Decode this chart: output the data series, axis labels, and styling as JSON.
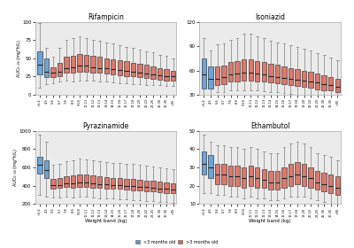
{
  "subplots": [
    {
      "title": "Rifampicin",
      "ylim": [
        0,
        100
      ],
      "yticks": [
        0,
        25,
        50,
        75,
        100
      ]
    },
    {
      "title": "Isoniazid",
      "ylim": [
        30,
        120
      ],
      "yticks": [
        30,
        60,
        90,
        120
      ]
    },
    {
      "title": "Pyrazinamide",
      "ylim": [
        200,
        1000
      ],
      "yticks": [
        200,
        400,
        600,
        800,
        1000
      ]
    },
    {
      "title": "Ethambutol",
      "ylim": [
        10,
        50
      ],
      "yticks": [
        10,
        20,
        30,
        40,
        50
      ]
    }
  ],
  "color_young": "#5b9bd5",
  "color_old": "#d9695a",
  "color_bg": "#ebebeb",
  "ylabel": "AUC₀₋₂₄ (mg*h/L)",
  "xlabel": "Weight band (kg)",
  "legend_young": "<3 months old",
  "legend_old": ">3 months old",
  "xtick_labels": [
    "<3-4",
    "4-5",
    "5-6",
    "6-7",
    "7-8",
    "8-9",
    "9-10",
    "10-11",
    "11-12",
    "12-13",
    "13-14",
    "14-15",
    "15-16",
    "16-17",
    "17-18",
    "18-20",
    "20-22",
    "22-25",
    "25-30",
    "30-35",
    ">35"
  ],
  "drugs": {
    "rfp": {
      "young": [
        {
          "wlo": 10,
          "q1": 28,
          "med": 42,
          "q3": 60,
          "whi": 98
        },
        {
          "wlo": 15,
          "q1": 24,
          "med": 32,
          "q3": 50,
          "whi": 65
        }
      ],
      "old": [
        {
          "wlo": 16,
          "q1": 24,
          "med": 30,
          "q3": 38,
          "whi": 52
        },
        {
          "wlo": 18,
          "q1": 26,
          "med": 32,
          "q3": 44,
          "whi": 65
        },
        {
          "wlo": 20,
          "q1": 30,
          "med": 37,
          "q3": 52,
          "whi": 75
        },
        {
          "wlo": 18,
          "q1": 30,
          "med": 38,
          "q3": 54,
          "whi": 78
        },
        {
          "wlo": 20,
          "q1": 32,
          "med": 40,
          "q3": 56,
          "whi": 80
        },
        {
          "wlo": 20,
          "q1": 32,
          "med": 40,
          "q3": 55,
          "whi": 78
        },
        {
          "wlo": 20,
          "q1": 31,
          "med": 38,
          "q3": 54,
          "whi": 76
        },
        {
          "wlo": 18,
          "q1": 30,
          "med": 37,
          "q3": 52,
          "whi": 74
        },
        {
          "wlo": 18,
          "q1": 29,
          "med": 36,
          "q3": 50,
          "whi": 72
        },
        {
          "wlo": 17,
          "q1": 28,
          "med": 35,
          "q3": 49,
          "whi": 70
        },
        {
          "wlo": 16,
          "q1": 27,
          "med": 34,
          "q3": 48,
          "whi": 68
        },
        {
          "wlo": 16,
          "q1": 26,
          "med": 33,
          "q3": 46,
          "whi": 66
        },
        {
          "wlo": 15,
          "q1": 25,
          "med": 32,
          "q3": 44,
          "whi": 64
        },
        {
          "wlo": 15,
          "q1": 24,
          "med": 31,
          "q3": 43,
          "whi": 62
        },
        {
          "wlo": 14,
          "q1": 23,
          "med": 29,
          "q3": 41,
          "whi": 60
        },
        {
          "wlo": 14,
          "q1": 22,
          "med": 28,
          "q3": 39,
          "whi": 58
        },
        {
          "wlo": 13,
          "q1": 21,
          "med": 27,
          "q3": 37,
          "whi": 55
        },
        {
          "wlo": 12,
          "q1": 20,
          "med": 26,
          "q3": 35,
          "whi": 53
        },
        {
          "wlo": 12,
          "q1": 19,
          "med": 25,
          "q3": 33,
          "whi": 50
        }
      ]
    },
    "inh": {
      "young": [
        {
          "wlo": 25,
          "q1": 38,
          "med": 55,
          "q3": 75,
          "whi": 100
        },
        {
          "wlo": 30,
          "q1": 38,
          "med": 50,
          "q3": 65,
          "whi": 85
        }
      ],
      "old": [
        {
          "wlo": 33,
          "q1": 42,
          "med": 50,
          "q3": 65,
          "whi": 92
        },
        {
          "wlo": 33,
          "q1": 43,
          "med": 52,
          "q3": 66,
          "whi": 94
        },
        {
          "wlo": 35,
          "q1": 46,
          "med": 55,
          "q3": 70,
          "whi": 98
        },
        {
          "wlo": 35,
          "q1": 47,
          "med": 56,
          "q3": 72,
          "whi": 100
        },
        {
          "wlo": 36,
          "q1": 48,
          "med": 57,
          "q3": 74,
          "whi": 105
        },
        {
          "wlo": 36,
          "q1": 48,
          "med": 57,
          "q3": 74,
          "whi": 105
        },
        {
          "wlo": 35,
          "q1": 47,
          "med": 56,
          "q3": 72,
          "whi": 102
        },
        {
          "wlo": 34,
          "q1": 46,
          "med": 55,
          "q3": 70,
          "whi": 100
        },
        {
          "wlo": 33,
          "q1": 45,
          "med": 53,
          "q3": 68,
          "whi": 97
        },
        {
          "wlo": 33,
          "q1": 44,
          "med": 52,
          "q3": 67,
          "whi": 95
        },
        {
          "wlo": 32,
          "q1": 43,
          "med": 51,
          "q3": 65,
          "whi": 93
        },
        {
          "wlo": 31,
          "q1": 42,
          "med": 50,
          "q3": 63,
          "whi": 91
        },
        {
          "wlo": 30,
          "q1": 41,
          "med": 49,
          "q3": 62,
          "whi": 89
        },
        {
          "wlo": 29,
          "q1": 40,
          "med": 48,
          "q3": 60,
          "whi": 87
        },
        {
          "wlo": 28,
          "q1": 39,
          "med": 47,
          "q3": 58,
          "whi": 85
        },
        {
          "wlo": 27,
          "q1": 37,
          "med": 45,
          "q3": 56,
          "whi": 82
        },
        {
          "wlo": 26,
          "q1": 36,
          "med": 43,
          "q3": 54,
          "whi": 79
        },
        {
          "wlo": 25,
          "q1": 35,
          "med": 42,
          "q3": 52,
          "whi": 76
        },
        {
          "wlo": 24,
          "q1": 33,
          "med": 40,
          "q3": 50,
          "whi": 73
        }
      ]
    },
    "pza": {
      "young": [
        {
          "wlo": 300,
          "q1": 530,
          "med": 630,
          "q3": 720,
          "whi": 960
        },
        {
          "wlo": 280,
          "q1": 480,
          "med": 570,
          "q3": 680,
          "whi": 880
        }
      ],
      "old": [
        {
          "wlo": 270,
          "q1": 370,
          "med": 405,
          "q3": 475,
          "whi": 630
        },
        {
          "wlo": 270,
          "q1": 375,
          "med": 410,
          "q3": 480,
          "whi": 640
        },
        {
          "wlo": 275,
          "q1": 385,
          "med": 425,
          "q3": 505,
          "whi": 665
        },
        {
          "wlo": 270,
          "q1": 380,
          "med": 425,
          "q3": 510,
          "whi": 680
        },
        {
          "wlo": 275,
          "q1": 385,
          "med": 435,
          "q3": 520,
          "whi": 695
        },
        {
          "wlo": 275,
          "q1": 385,
          "med": 435,
          "q3": 518,
          "whi": 690
        },
        {
          "wlo": 270,
          "q1": 380,
          "med": 425,
          "q3": 510,
          "whi": 678
        },
        {
          "wlo": 265,
          "q1": 375,
          "med": 418,
          "q3": 500,
          "whi": 668
        },
        {
          "wlo": 260,
          "q1": 370,
          "med": 413,
          "q3": 492,
          "whi": 658
        },
        {
          "wlo": 258,
          "q1": 368,
          "med": 410,
          "q3": 488,
          "whi": 654
        },
        {
          "wlo": 255,
          "q1": 363,
          "med": 406,
          "q3": 483,
          "whi": 648
        },
        {
          "wlo": 250,
          "q1": 358,
          "med": 400,
          "q3": 478,
          "whi": 642
        },
        {
          "wlo": 245,
          "q1": 352,
          "med": 394,
          "q3": 472,
          "whi": 636
        },
        {
          "wlo": 240,
          "q1": 345,
          "med": 388,
          "q3": 465,
          "whi": 628
        },
        {
          "wlo": 235,
          "q1": 340,
          "med": 382,
          "q3": 458,
          "whi": 620
        },
        {
          "wlo": 230,
          "q1": 334,
          "med": 376,
          "q3": 451,
          "whi": 612
        },
        {
          "wlo": 225,
          "q1": 328,
          "med": 370,
          "q3": 444,
          "whi": 604
        },
        {
          "wlo": 220,
          "q1": 322,
          "med": 364,
          "q3": 436,
          "whi": 595
        },
        {
          "wlo": 215,
          "q1": 315,
          "med": 358,
          "q3": 428,
          "whi": 585
        }
      ]
    },
    "emb": {
      "young": [
        {
          "wlo": 16,
          "q1": 26,
          "med": 32,
          "q3": 39,
          "whi": 48
        },
        {
          "wlo": 16,
          "q1": 24,
          "med": 30,
          "q3": 37,
          "whi": 44
        }
      ],
      "old": [
        {
          "wlo": 15,
          "q1": 21,
          "med": 26,
          "q3": 32,
          "whi": 42
        },
        {
          "wlo": 15,
          "q1": 21,
          "med": 26,
          "q3": 32,
          "whi": 42
        },
        {
          "wlo": 14,
          "q1": 20,
          "med": 25,
          "q3": 31,
          "whi": 41
        },
        {
          "wlo": 14,
          "q1": 20,
          "med": 25,
          "q3": 31,
          "whi": 41
        },
        {
          "wlo": 13,
          "q1": 19,
          "med": 24,
          "q3": 30,
          "whi": 40
        },
        {
          "wlo": 14,
          "q1": 20,
          "med": 25,
          "q3": 31,
          "whi": 41
        },
        {
          "wlo": 13,
          "q1": 19,
          "med": 24,
          "q3": 30,
          "whi": 40
        },
        {
          "wlo": 13,
          "q1": 19,
          "med": 23,
          "q3": 29,
          "whi": 39
        },
        {
          "wlo": 12,
          "q1": 18,
          "med": 22,
          "q3": 28,
          "whi": 38
        },
        {
          "wlo": 12,
          "q1": 18,
          "med": 22,
          "q3": 28,
          "whi": 38
        },
        {
          "wlo": 13,
          "q1": 19,
          "med": 24,
          "q3": 30,
          "whi": 41
        },
        {
          "wlo": 14,
          "q1": 20,
          "med": 25,
          "q3": 32,
          "whi": 43
        },
        {
          "wlo": 14,
          "q1": 21,
          "med": 26,
          "q3": 33,
          "whi": 44
        },
        {
          "wlo": 14,
          "q1": 20,
          "med": 25,
          "q3": 32,
          "whi": 43
        },
        {
          "wlo": 13,
          "q1": 19,
          "med": 24,
          "q3": 30,
          "whi": 41
        },
        {
          "wlo": 12,
          "q1": 18,
          "med": 22,
          "q3": 28,
          "whi": 38
        },
        {
          "wlo": 11,
          "q1": 17,
          "med": 21,
          "q3": 27,
          "whi": 37
        },
        {
          "wlo": 10,
          "q1": 16,
          "med": 20,
          "q3": 26,
          "whi": 36
        },
        {
          "wlo": 10,
          "q1": 15,
          "med": 19,
          "q3": 25,
          "whi": 34
        }
      ]
    }
  }
}
